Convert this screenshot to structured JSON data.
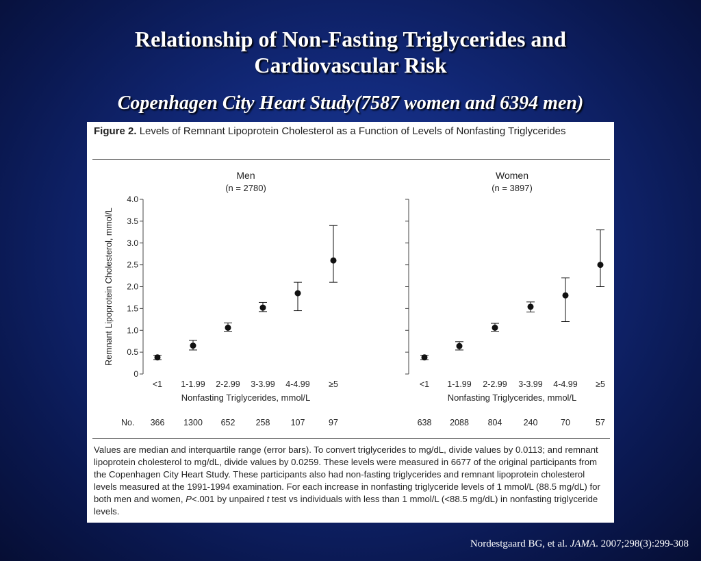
{
  "slide": {
    "title_line1": "Relationship of Non-Fasting Triglycerides and",
    "title_line2": "Cardiovascular Risk",
    "subtitle": "Copenhagen City Heart Study(7587 women and 6394 men)"
  },
  "figure": {
    "label": "Figure 2.",
    "caption": "Levels of Remnant Lipoprotein Cholesterol as a Function of Levels of Nonfasting Triglycerides",
    "notes_1": "Values are median and interquartile range (error bars). To convert triglycerides to mg/dL, divide values by 0.0113; and remnant lipoprotein cholesterol to mg/dL, divide values by 0.0259. These levels were measured in 6677 of the original participants from the Copenhagen City Heart Study. These participants also had non-fasting triglycerides and remnant lipoprotein cholesterol levels measured at the 1991-1994 examination. For each increase in nonfasting triglyceride levels of 1 mmol/L (88.5 mg/dL) for both men and women, ",
    "notes_p": "P",
    "notes_2": "<.001 by unpaired ",
    "notes_t": "t",
    "notes_3": " test vs individuals with less than 1 mmol/L (<88.5 mg/dL) in nonfasting triglyceride levels."
  },
  "citation": {
    "authors": "Nordestgaard BG, et al. ",
    "journal": "JAMA",
    "details": ". 2007;298(3):299-308"
  },
  "chart_data": [
    {
      "type": "scatter",
      "panel": "Men",
      "title": "Men",
      "subtitle": "(n = 2780)",
      "ylabel": "Remnant Lipoprotein Cholesterol, mmol/L",
      "xlabel": "Nonfasting Triglycerides, mmol/L",
      "ylim": [
        0,
        4.0
      ],
      "yticks": [
        0,
        0.5,
        1.0,
        1.5,
        2.0,
        2.5,
        3.0,
        3.5,
        4.0
      ],
      "ytick_labels": [
        "0",
        "0.5",
        "1.0",
        "1.5",
        "2.0",
        "2.5",
        "3.0",
        "3.5",
        "4.0"
      ],
      "categories": [
        "<1",
        "1-1.99",
        "2-2.99",
        "3-3.99",
        "4-4.99",
        "≥5"
      ],
      "median": [
        0.38,
        0.65,
        1.06,
        1.52,
        1.85,
        2.6
      ],
      "q1": [
        0.33,
        0.55,
        0.98,
        1.43,
        1.45,
        2.1
      ],
      "q3": [
        0.43,
        0.77,
        1.17,
        1.64,
        2.1,
        3.4
      ],
      "n_label": "No.",
      "n": [
        "366",
        "1300",
        "652",
        "258",
        "107",
        "97"
      ],
      "grid": false,
      "legend": "none"
    },
    {
      "type": "scatter",
      "panel": "Women",
      "title": "Women",
      "subtitle": "(n = 3897)",
      "ylabel": "",
      "xlabel": "Nonfasting Triglycerides, mmol/L",
      "ylim": [
        0,
        4.0
      ],
      "categories": [
        "<1",
        "1-1.99",
        "2-2.99",
        "3-3.99",
        "4-4.99",
        "≥5"
      ],
      "median": [
        0.38,
        0.64,
        1.06,
        1.54,
        1.8,
        2.5
      ],
      "q1": [
        0.33,
        0.55,
        0.98,
        1.42,
        1.2,
        2.0
      ],
      "q3": [
        0.43,
        0.74,
        1.16,
        1.65,
        2.2,
        3.3
      ],
      "n": [
        "638",
        "2088",
        "804",
        "240",
        "70",
        "57"
      ],
      "grid": false,
      "legend": "none"
    }
  ],
  "colors": {
    "background": "#0f2470",
    "marker": "#111111",
    "axis": "#444444"
  }
}
